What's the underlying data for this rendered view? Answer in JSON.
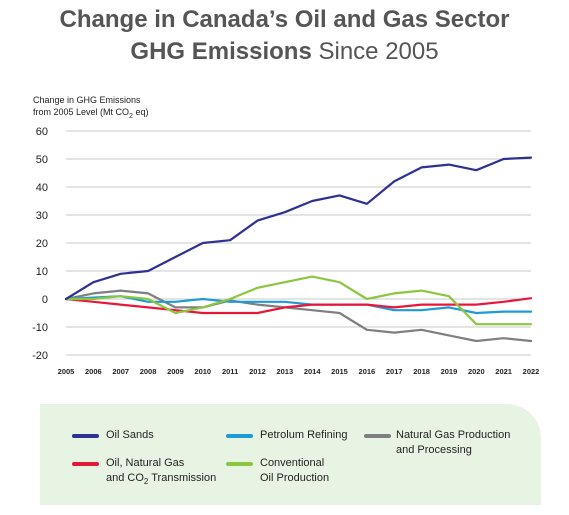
{
  "title": {
    "line1": "Change in Canada’s Oil and Gas Sector",
    "line2_bold": "GHG Emissions",
    "line2_rest": "Since 2005"
  },
  "chart_data": {
    "type": "line",
    "ylabel_line1": "Change in GHG Emissions",
    "ylabel_line2_pre": "from 2005 Level (Mt CO",
    "ylabel_sub": "2",
    "ylabel_line2_post": " eq)",
    "x": [
      "2005",
      "2006",
      "2007",
      "2008",
      "2009",
      "2010",
      "2011",
      "2012",
      "2013",
      "2014",
      "2015",
      "2016",
      "2017",
      "2018",
      "2019",
      "2020",
      "2021",
      "2022"
    ],
    "ylim": [
      -20,
      60
    ],
    "yticks": [
      -20,
      -10,
      0,
      10,
      20,
      30,
      40,
      50,
      60
    ],
    "ytick_labels": [
      "-20",
      "-10",
      "0",
      "10",
      "20",
      "30",
      "40",
      "50",
      "60"
    ],
    "grid": "horizontal",
    "series": [
      {
        "name": "Oil Sands",
        "color": "#2e3192",
        "values": [
          0,
          6,
          9,
          10,
          15,
          20,
          21,
          28,
          31,
          35,
          37,
          34,
          42,
          47,
          48,
          46,
          50,
          50.5
        ]
      },
      {
        "name": "Petrolum Refining",
        "color": "#1d9bd7",
        "values": [
          0,
          0.5,
          1,
          -1,
          -1,
          0,
          -1,
          -1,
          -1,
          -2,
          -2,
          -2,
          -4,
          -4,
          -3,
          -5,
          -4.5,
          -4.5
        ]
      },
      {
        "name": "Natural Gas Production and Processing",
        "color": "#7f7f7f",
        "values": [
          0,
          2,
          3,
          2,
          -3,
          -3,
          -0.5,
          -2,
          -3,
          -4,
          -5,
          -11,
          -12,
          -11,
          -13,
          -15,
          -14,
          -15
        ]
      },
      {
        "name": "Oil, Natural Gas and CO2 Transmission",
        "color": "#e8173a",
        "values": [
          0,
          -1,
          -2,
          -3,
          -4,
          -5,
          -5,
          -5,
          -3,
          -2,
          -2,
          -2,
          -3,
          -2,
          -2,
          -2,
          -1,
          0.3
        ]
      },
      {
        "name": "Conventional Oil Production",
        "color": "#8cc63f",
        "values": [
          0,
          0,
          1,
          0,
          -5,
          -3,
          0,
          4,
          6,
          8,
          6,
          0,
          2,
          3,
          1,
          -9,
          -9,
          -9
        ]
      }
    ]
  },
  "legend": [
    {
      "line1": "Oil Sands",
      "line2": "",
      "color": "#2e3192"
    },
    {
      "line1": "Petrolum Refining",
      "line2": "",
      "color": "#1d9bd7"
    },
    {
      "line1": "Natural Gas Production",
      "line2": "and Processing",
      "color": "#7f7f7f"
    },
    {
      "line1": "Oil, Natural Gas",
      "line2_pre": "and CO",
      "line2_sub": "2",
      "line2_post": " Transmission",
      "color": "#e8173a"
    },
    {
      "line1": "Conventional",
      "line2": "Oil Production",
      "color": "#8cc63f"
    }
  ]
}
